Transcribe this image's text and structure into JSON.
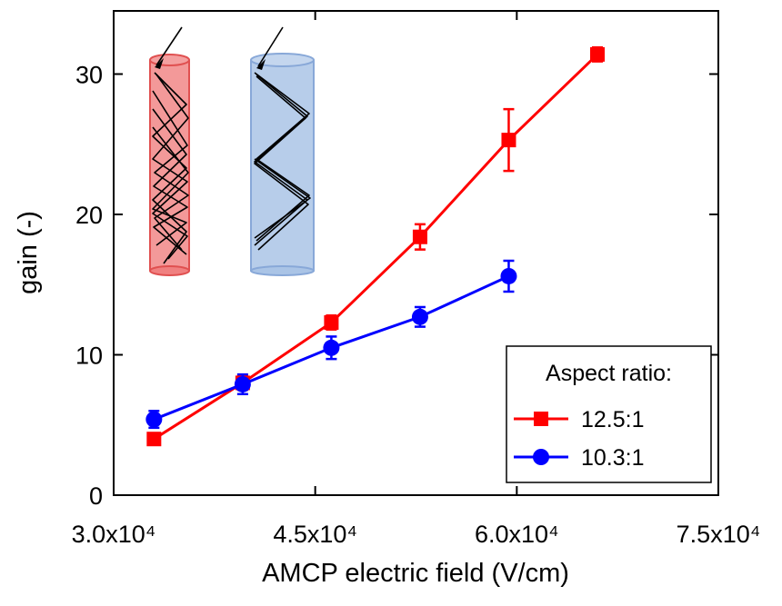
{
  "chart_data": {
    "type": "line",
    "x_label": "AMCP electric field (V/cm)",
    "y_label": "gain (-)",
    "x": [
      33000,
      39600,
      46200,
      52800,
      59400,
      66000
    ],
    "series": [
      {
        "name": "12.5:1",
        "color": "#ff0000",
        "marker": "square",
        "values": [
          4.0,
          8.0,
          12.3,
          18.4,
          25.3,
          31.4
        ],
        "errors": [
          0.4,
          0.5,
          0.5,
          0.9,
          2.2,
          0.5
        ]
      },
      {
        "name": "10.3:1",
        "color": "#0000ff",
        "marker": "circle",
        "values": [
          5.4,
          7.9,
          10.5,
          12.7,
          15.6,
          null
        ],
        "errors": [
          0.6,
          0.7,
          0.8,
          0.7,
          1.1,
          null
        ]
      }
    ],
    "legend_title": "Aspect ratio:",
    "legend_position": "lower right",
    "xlim": [
      30000,
      75000
    ],
    "xticks": [
      {
        "value": 30000,
        "label": "3.0x10⁴"
      },
      {
        "value": 45000,
        "label": "4.5x10⁴"
      },
      {
        "value": 60000,
        "label": "6.0x10⁴"
      },
      {
        "value": 75000,
        "label": "7.5x10⁴"
      }
    ],
    "ylim": [
      0,
      34.5
    ],
    "yticks": [
      0,
      10,
      20,
      30
    ],
    "grid": false
  }
}
